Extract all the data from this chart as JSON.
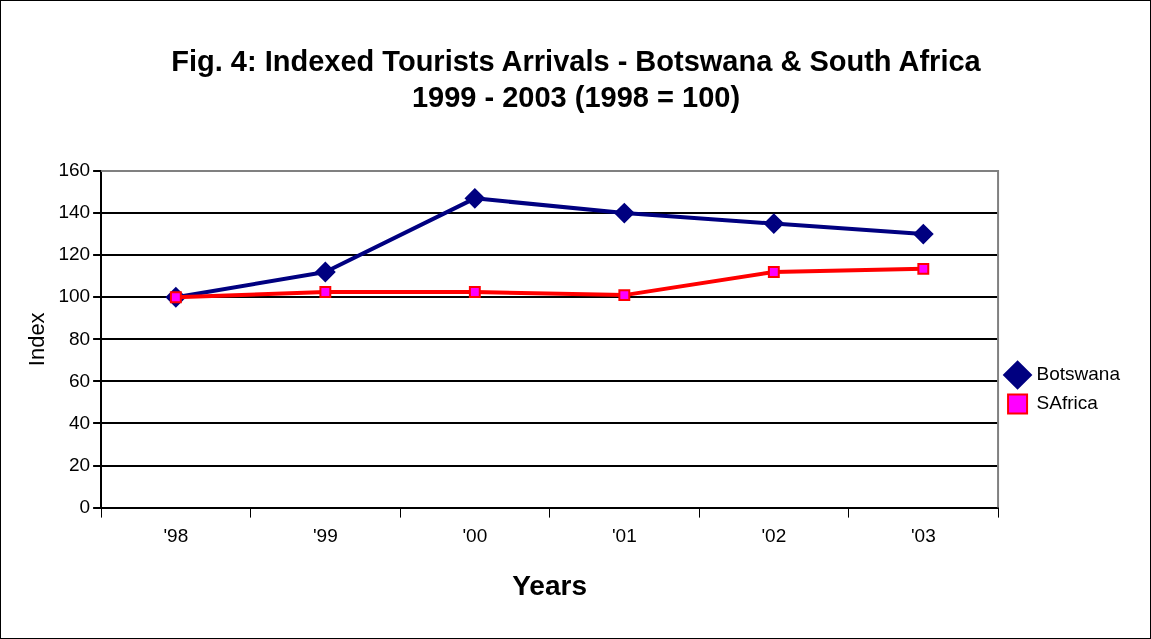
{
  "chart_data": {
    "type": "line",
    "title": "Fig. 4: Indexed Tourists Arrivals - Botswana & South Africa 1999 - 2003 (1998 = 100)",
    "xlabel": "Years",
    "ylabel": "Index",
    "categories": [
      "'98",
      "'99",
      "'00",
      "'01",
      "'02",
      "'03"
    ],
    "series": [
      {
        "name": "Botswana",
        "color": "#000080",
        "marker": "diamond",
        "values": [
          100,
          112,
          147,
          140,
          135,
          130
        ]
      },
      {
        "name": "SAfrica",
        "color": "#ff0000",
        "marker": "square",
        "values": [
          100,
          102.5,
          102.5,
          101,
          112,
          113.5
        ]
      }
    ],
    "ylim": [
      0,
      160
    ],
    "yticks": [
      0,
      20,
      40,
      60,
      80,
      100,
      120,
      140,
      160
    ],
    "grid": "y",
    "legend": "right"
  }
}
